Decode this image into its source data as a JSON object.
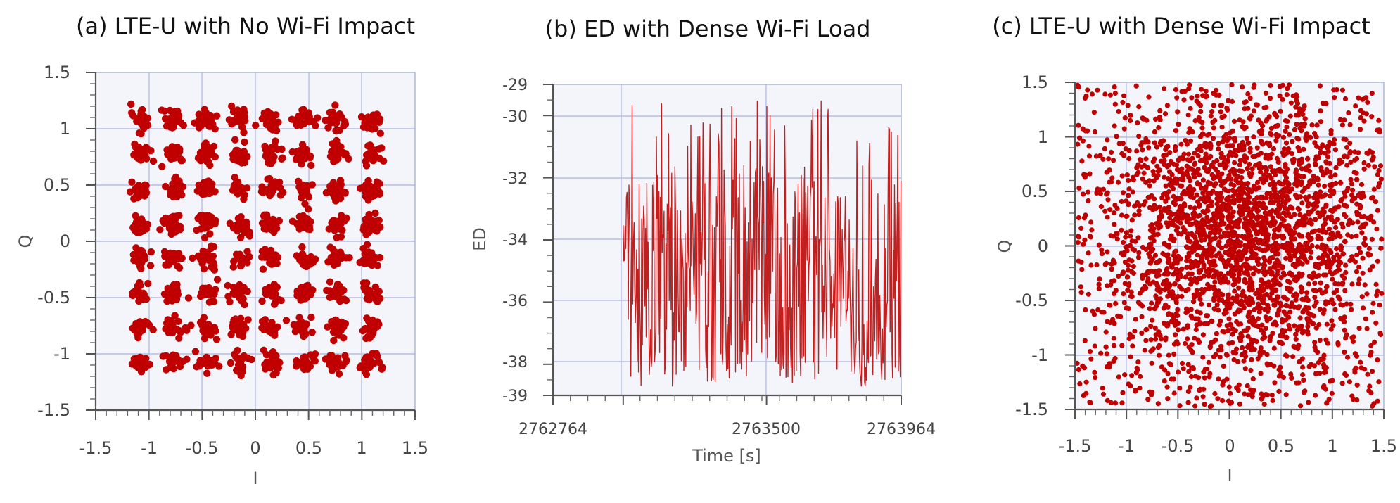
{
  "colors": {
    "marker": "#c00000",
    "line": "#c21f1f"
  },
  "chart_data": [
    {
      "type": "scatter",
      "title": "(a) LTE-U with No Wi-Fi Impact",
      "xlabel": "I",
      "ylabel": "Q",
      "xlim": [
        -1.5,
        1.5
      ],
      "ylim": [
        -1.5,
        1.5
      ],
      "xticks": [
        "-1.5",
        "-1",
        "-0.5",
        "0",
        "0.5",
        "1",
        "1.5"
      ],
      "yticks": [
        "1.5",
        "1",
        "0.5",
        "0",
        "-0.5",
        "-1",
        "-1.5"
      ],
      "grid": true,
      "constellation_levels": [
        -1.08,
        -0.77,
        -0.46,
        -0.15,
        0.15,
        0.46,
        0.77,
        1.08
      ],
      "cluster_spread": 0.045,
      "points_per_symbol": 26
    },
    {
      "type": "line",
      "title": "(b) ED with Dense Wi-Fi Load",
      "xlabel": "Time [s]",
      "ylabel": "ED",
      "xlim": [
        2762764,
        2763964
      ],
      "ylim": [
        -39,
        -29
      ],
      "xticks": [
        "2762764",
        "2763500",
        "2763964"
      ],
      "yticks": [
        "-29",
        "-30",
        "-32",
        "-34",
        "-36",
        "-38",
        "-39"
      ],
      "grid": true,
      "series": [
        {
          "x_start": 2763006,
          "x_end": 2763964,
          "value_range": [
            -38.7,
            -29.1
          ],
          "segments": [
            {
              "from": 2763006,
              "to": 2763190,
              "activity": "high"
            },
            {
              "from": 2763190,
              "to": 2763260,
              "activity": "medium"
            },
            {
              "from": 2763260,
              "to": 2763490,
              "activity": "high"
            },
            {
              "from": 2763490,
              "to": 2763680,
              "activity": "high"
            },
            {
              "from": 2763680,
              "to": 2763800,
              "activity": "medium"
            },
            {
              "from": 2763800,
              "to": 2763964,
              "activity": "high"
            }
          ]
        }
      ]
    },
    {
      "type": "scatter",
      "title": "(c) LTE-U with Dense Wi-Fi Impact",
      "xlabel": "I",
      "ylabel": "Q",
      "xlim": [
        -1.5,
        1.5
      ],
      "ylim": [
        -1.5,
        1.5
      ],
      "xticks": [
        "-1.5",
        "-1",
        "-0.5",
        "0",
        "0.5",
        "1",
        "1.5"
      ],
      "yticks": [
        "1.5",
        "1",
        "0.5",
        "0",
        "-0.5",
        "-1",
        "-1.5"
      ],
      "grid": true,
      "point_count": 3000,
      "center": [
        0.15,
        0.1
      ],
      "spread": 0.62
    }
  ]
}
